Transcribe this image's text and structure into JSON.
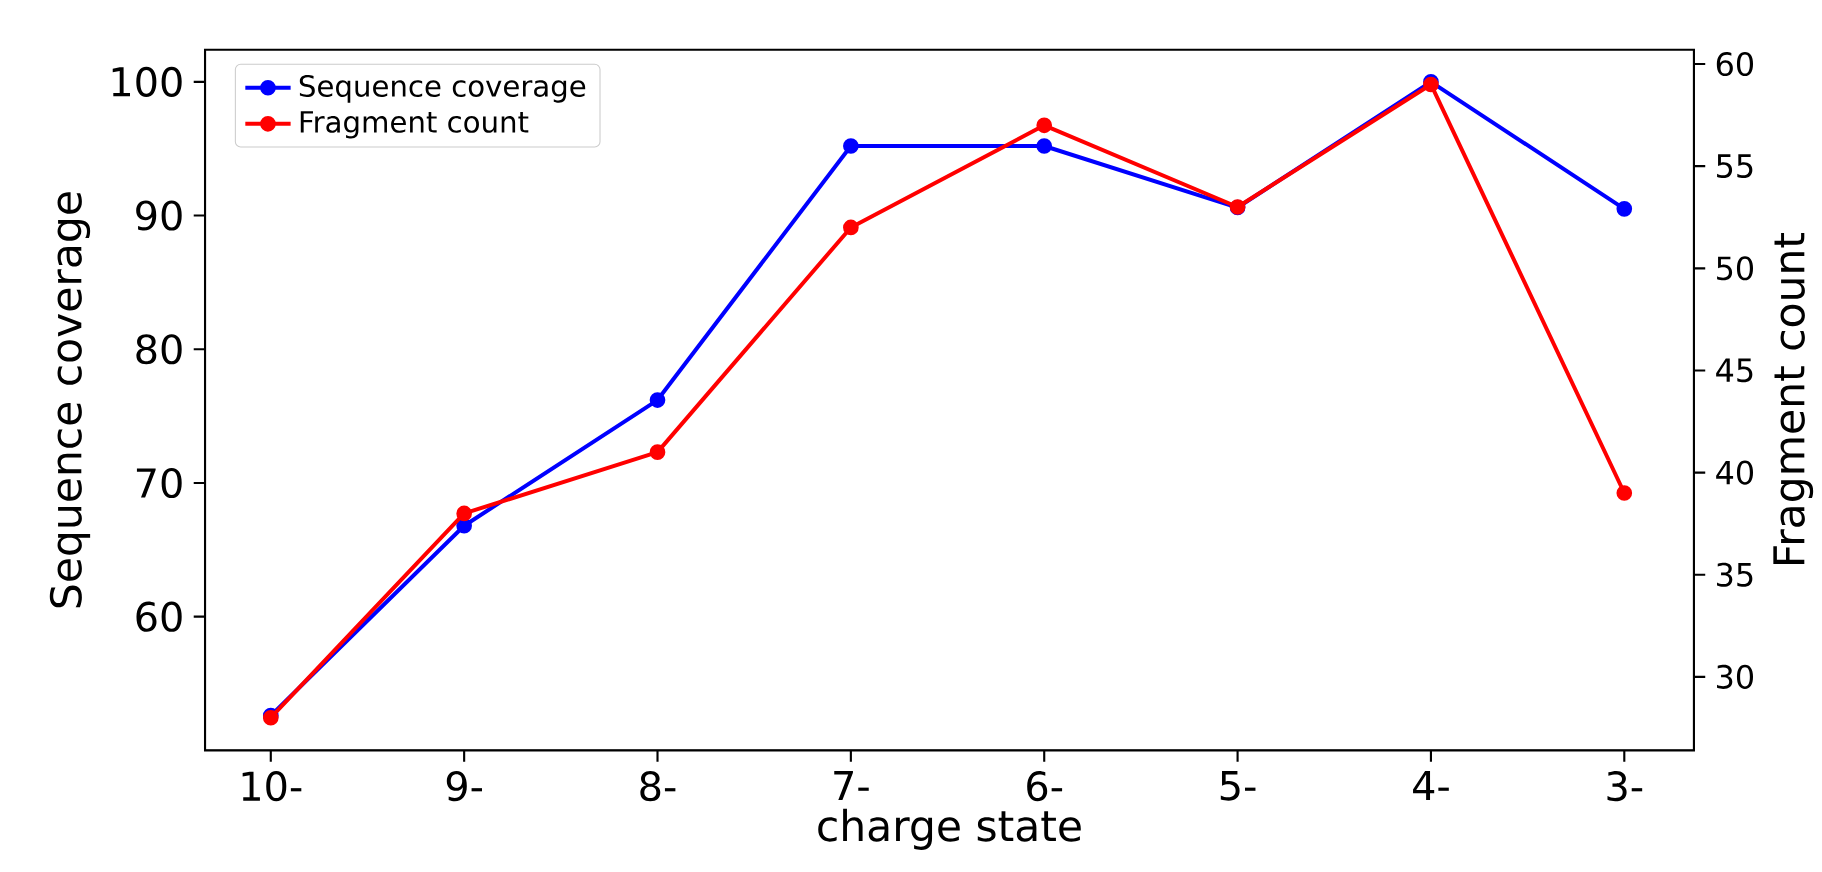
{
  "chart_data": {
    "type": "line",
    "xlabel": "charge state",
    "ylabel": "Sequence coverage",
    "y2label": "Fragment count",
    "categories": [
      "10-",
      "9-",
      "8-",
      "7-",
      "6-",
      "5-",
      "4-",
      "3-"
    ],
    "series": [
      {
        "name": "Sequence coverage",
        "color": "#0000ff",
        "values": [
          52.6,
          66.8,
          76.2,
          95.2,
          95.2,
          90.6,
          100,
          90.5
        ]
      },
      {
        "name": "Fragment count",
        "color": "#ff0000",
        "axis": "y2",
        "values": [
          28,
          38,
          41,
          52,
          57,
          53,
          59,
          39
        ]
      }
    ],
    "ylim": [
      50,
      102.4
    ],
    "yticks": [
      60,
      70,
      80,
      90,
      100
    ],
    "y2lim": [
      26.4,
      60.7
    ],
    "y2ticks": [
      30,
      35,
      40,
      45,
      50,
      55,
      60
    ],
    "marker": "circle",
    "line_style": "solid",
    "legend": "top left",
    "grid": false
  }
}
